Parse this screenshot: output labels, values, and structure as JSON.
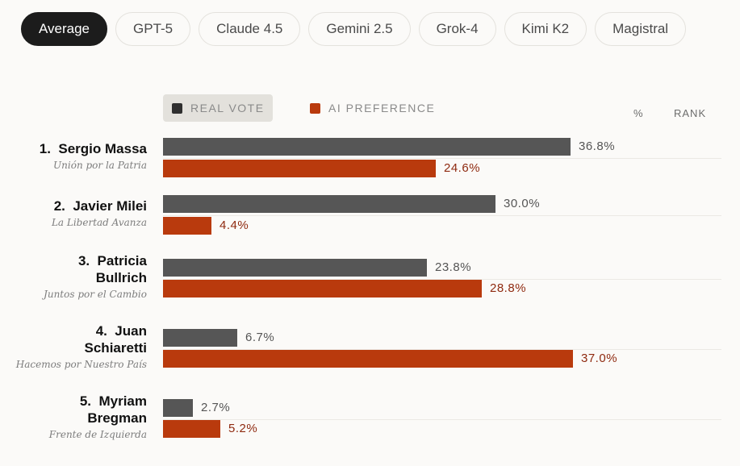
{
  "tabs": [
    "Average",
    "GPT-5",
    "Claude 4.5",
    "Gemini 2.5",
    "Grok-4",
    "Kimi K2",
    "Magistral"
  ],
  "active_tab": "Average",
  "colors": {
    "real_vote": "#565656",
    "ai_preference": "#b93a0d"
  },
  "chart_data": {
    "type": "bar",
    "orientation": "horizontal",
    "legend": [
      "REAL VOTE",
      "AI PREFERENCE"
    ],
    "column_headers": {
      "percent": "%",
      "rank": "RANK"
    },
    "candidates": [
      {
        "rank": "1.",
        "name": "Sergio Massa",
        "party": "Unión por la Patria",
        "real": 36.8,
        "ai": 24.6,
        "real_label": "36.8%",
        "ai_label": "24.6%"
      },
      {
        "rank": "2.",
        "name": "Javier Milei",
        "party": "La Libertad Avanza",
        "real": 30.0,
        "ai": 4.4,
        "real_label": "30.0%",
        "ai_label": "4.4%"
      },
      {
        "rank": "3.",
        "name": "Patricia Bullrich",
        "party": "Juntos por el Cambio",
        "real": 23.8,
        "ai": 28.8,
        "real_label": "23.8%",
        "ai_label": "28.8%"
      },
      {
        "rank": "4.",
        "name": "Juan Schiaretti",
        "party": "Hacemos por Nuestro País",
        "real": 6.7,
        "ai": 37.0,
        "real_label": "6.7%",
        "ai_label": "37.0%"
      },
      {
        "rank": "5.",
        "name": "Myriam Bregman",
        "party": "Frente de Izquierda",
        "real": 2.7,
        "ai": 5.2,
        "real_label": "2.7%",
        "ai_label": "5.2%"
      }
    ]
  }
}
